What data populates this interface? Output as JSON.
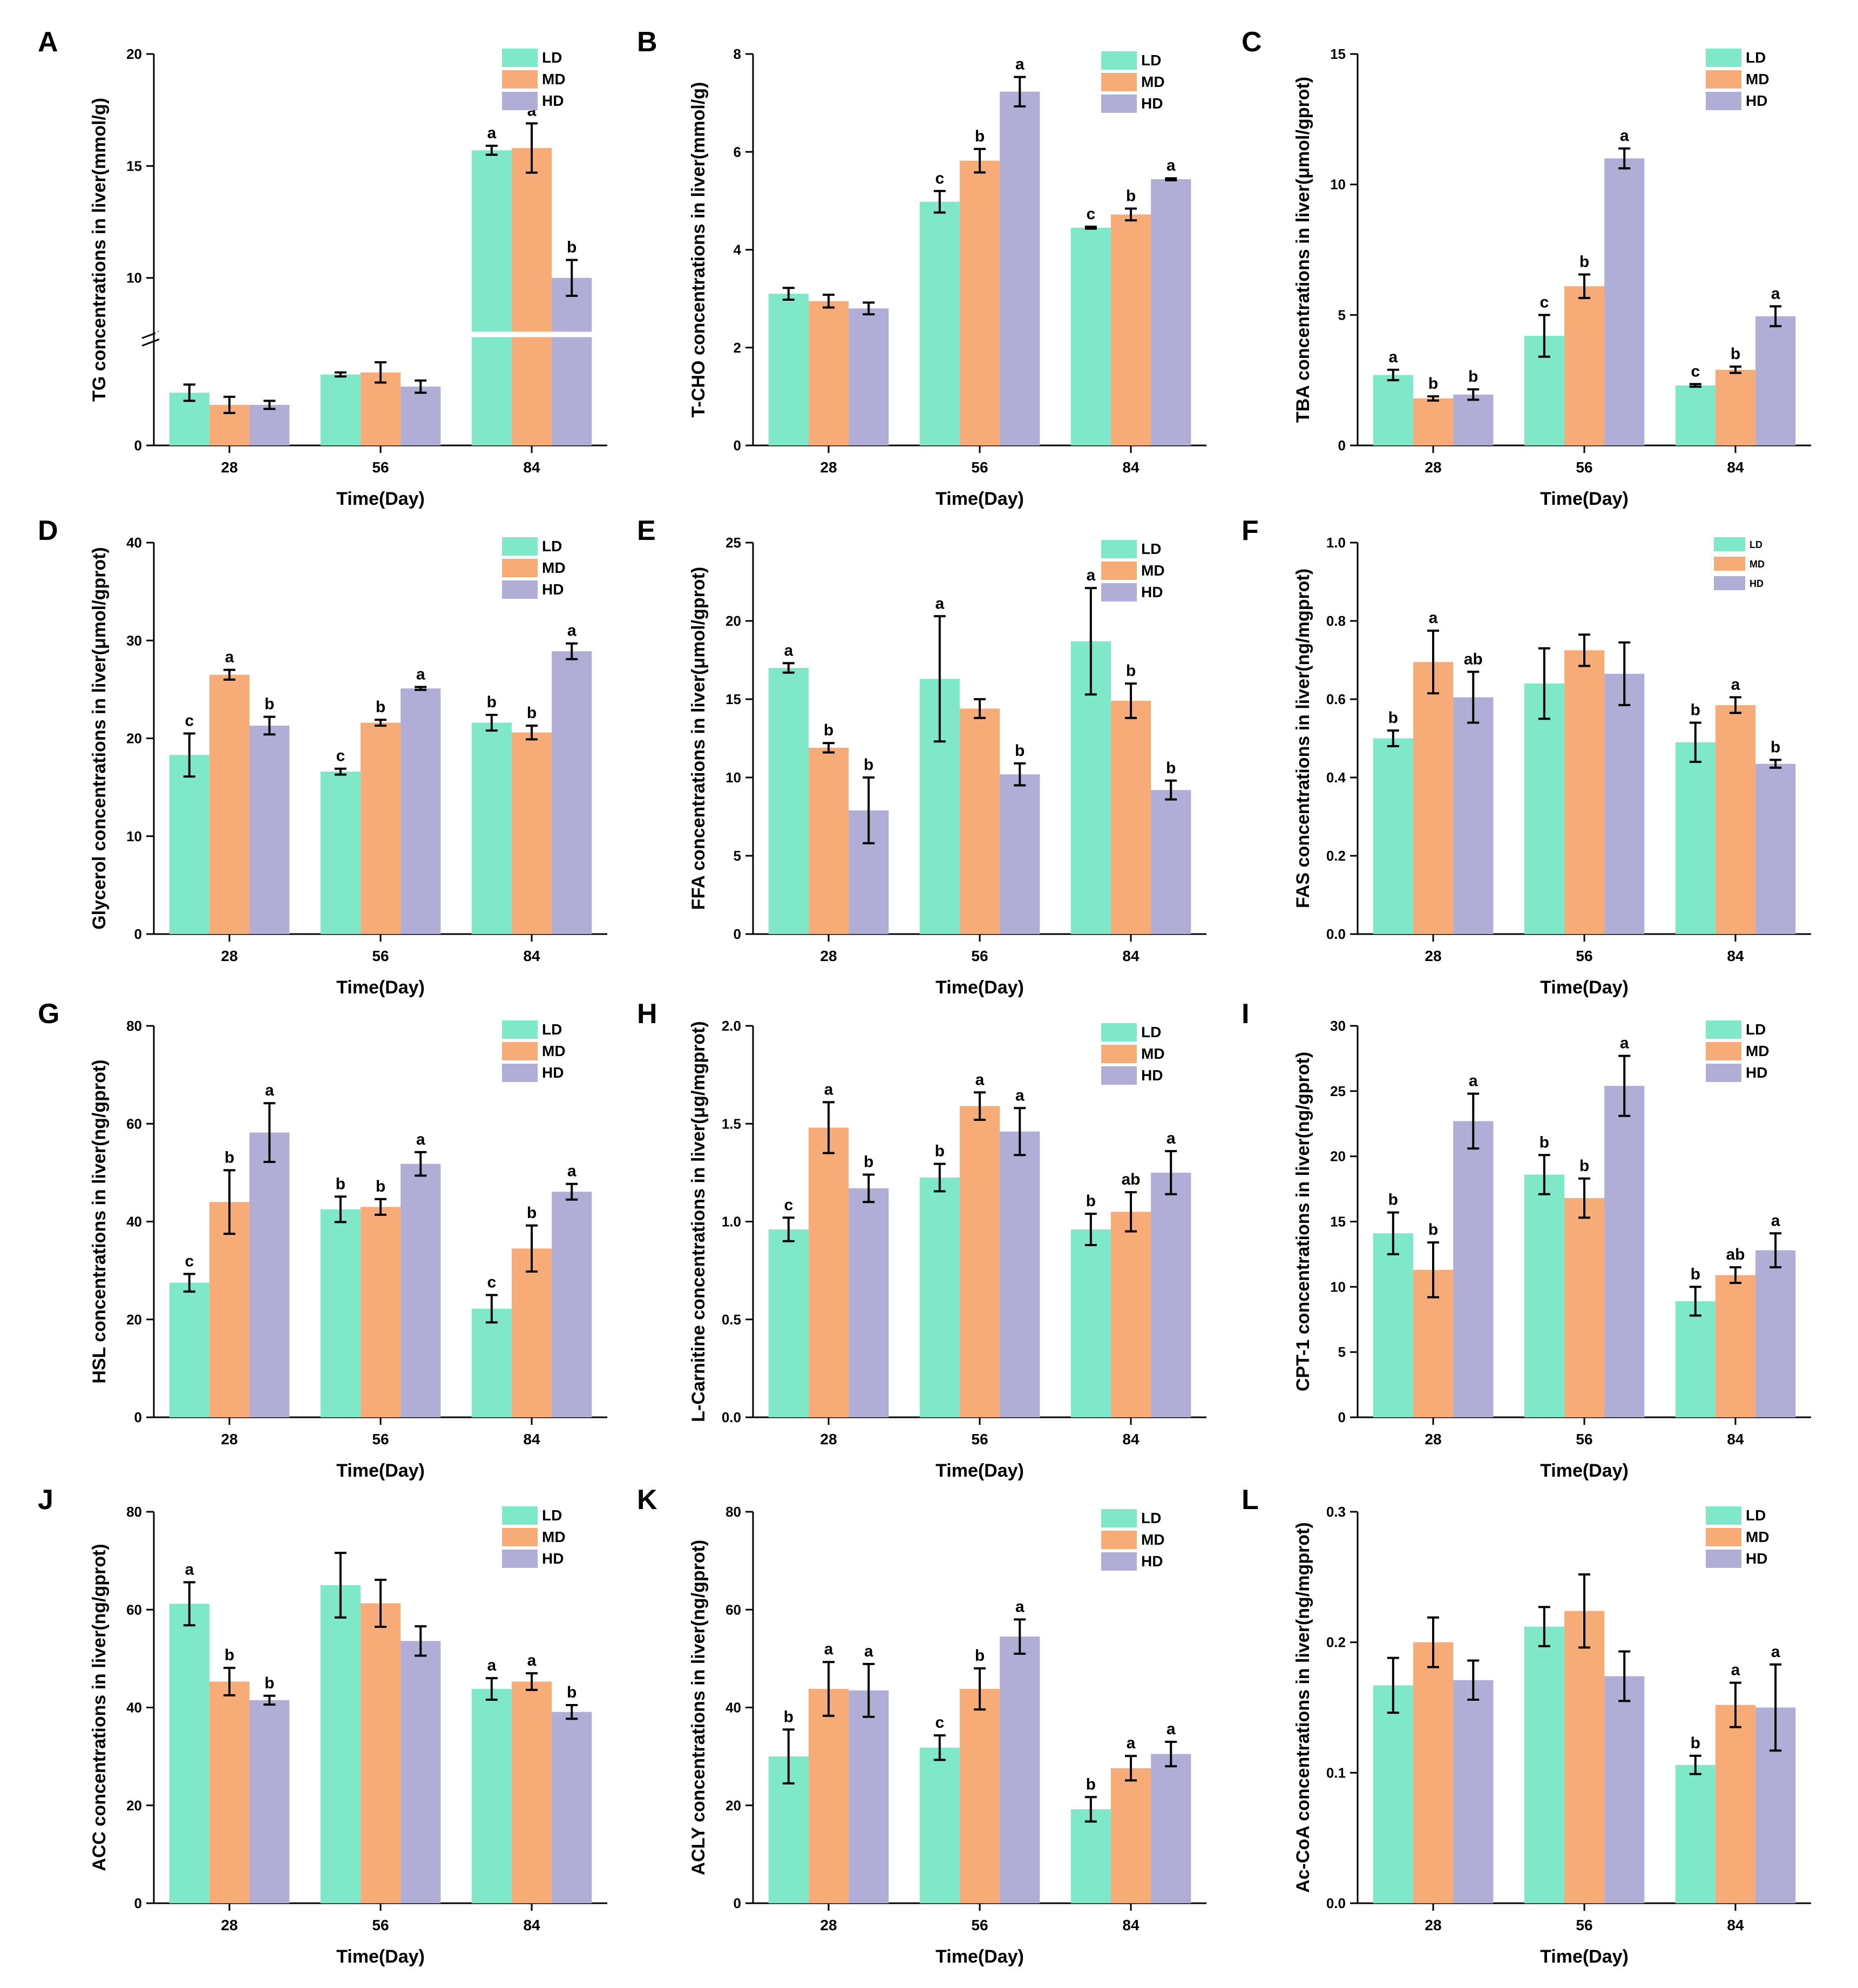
{
  "figure": {
    "series_names": [
      "LD",
      "MD",
      "HD"
    ],
    "colors": {
      "LD": "#7ee8c8",
      "MD": "#f7ab76",
      "HD": "#b0add6"
    }
  },
  "chart_data": [
    {
      "panel": "A",
      "type": "bar",
      "ylabel": "TG concentrations in liver(mmol/g)",
      "xlabel": "Time(Day)",
      "categories": [
        "28",
        "56",
        "84"
      ],
      "ylim": [
        0,
        20
      ],
      "yticks": [
        "0",
        "10",
        "15",
        "20"
      ],
      "axis_break": true,
      "series": [
        {
          "name": "LD",
          "values": [
            2.6,
            3.5,
            15.7
          ],
          "errors": [
            0.4,
            0.1,
            0.2
          ],
          "letters": [
            "",
            "",
            "a"
          ]
        },
        {
          "name": "MD",
          "values": [
            2.0,
            3.6,
            15.8
          ],
          "errors": [
            0.4,
            0.5,
            1.1
          ],
          "letters": [
            "",
            "",
            "a"
          ]
        },
        {
          "name": "HD",
          "values": [
            2.0,
            2.9,
            10.0
          ],
          "errors": [
            0.2,
            0.3,
            0.8
          ],
          "letters": [
            "",
            "",
            "b"
          ]
        }
      ]
    },
    {
      "panel": "B",
      "type": "bar",
      "ylabel": "T-CHO concentrations in liver(mmol/g)",
      "xlabel": "Time(Day)",
      "categories": [
        "28",
        "56",
        "84"
      ],
      "ylim": [
        0,
        8
      ],
      "yticks": [
        "0",
        "2",
        "4",
        "6",
        "8"
      ],
      "series": [
        {
          "name": "LD",
          "values": [
            3.1,
            4.98,
            4.45
          ],
          "errors": [
            0.12,
            0.22,
            0.02
          ],
          "letters": [
            "",
            "c",
            "c"
          ]
        },
        {
          "name": "MD",
          "values": [
            2.95,
            5.82,
            4.72
          ],
          "errors": [
            0.13,
            0.24,
            0.12
          ],
          "letters": [
            "",
            "b",
            "b"
          ]
        },
        {
          "name": "HD",
          "values": [
            2.8,
            7.23,
            5.44
          ],
          "errors": [
            0.12,
            0.3,
            0.02
          ],
          "letters": [
            "",
            "a",
            "a"
          ]
        }
      ]
    },
    {
      "panel": "C",
      "type": "bar",
      "ylabel": "TBA concentrations in liver(μmol/gprot)",
      "xlabel": "Time(Day)",
      "categories": [
        "28",
        "56",
        "84"
      ],
      "ylim": [
        0,
        15
      ],
      "yticks": [
        "0",
        "5",
        "10",
        "15"
      ],
      "series": [
        {
          "name": "LD",
          "values": [
            2.7,
            4.2,
            2.3
          ],
          "errors": [
            0.2,
            0.8,
            0.05
          ],
          "letters": [
            "a",
            "c",
            "c"
          ]
        },
        {
          "name": "MD",
          "values": [
            1.8,
            6.1,
            2.9
          ],
          "errors": [
            0.08,
            0.45,
            0.12
          ],
          "letters": [
            "b",
            "b",
            "b"
          ]
        },
        {
          "name": "HD",
          "values": [
            1.95,
            11.0,
            4.95
          ],
          "errors": [
            0.2,
            0.38,
            0.38
          ],
          "letters": [
            "b",
            "a",
            "a"
          ]
        }
      ]
    },
    {
      "panel": "D",
      "type": "bar",
      "ylabel": "Glycerol concentrations in liver(μmol/gprot)",
      "xlabel": "Time(Day)",
      "categories": [
        "28",
        "56",
        "84"
      ],
      "ylim": [
        0,
        40
      ],
      "yticks": [
        "0",
        "10",
        "20",
        "30",
        "40"
      ],
      "series": [
        {
          "name": "LD",
          "values": [
            18.3,
            16.6,
            21.6
          ],
          "errors": [
            2.2,
            0.3,
            0.8
          ],
          "letters": [
            "c",
            "c",
            "b"
          ]
        },
        {
          "name": "MD",
          "values": [
            26.5,
            21.6,
            20.6
          ],
          "errors": [
            0.5,
            0.3,
            0.7
          ],
          "letters": [
            "a",
            "b",
            "b"
          ]
        },
        {
          "name": "HD",
          "values": [
            21.3,
            25.1,
            28.9
          ],
          "errors": [
            0.9,
            0.15,
            0.8
          ],
          "letters": [
            "b",
            "a",
            "a"
          ]
        }
      ]
    },
    {
      "panel": "E",
      "type": "bar",
      "ylabel": "FFA concentrations in liver(μmol/gprot)",
      "xlabel": "Time(Day)",
      "categories": [
        "28",
        "56",
        "84"
      ],
      "ylim": [
        0,
        25
      ],
      "yticks": [
        "0",
        "5",
        "10",
        "15",
        "20",
        "25"
      ],
      "series": [
        {
          "name": "LD",
          "values": [
            17.0,
            16.3,
            18.7
          ],
          "errors": [
            0.3,
            4.0,
            3.4
          ],
          "letters": [
            "a",
            "a",
            "a"
          ]
        },
        {
          "name": "MD",
          "values": [
            11.9,
            14.4,
            14.9
          ],
          "errors": [
            0.3,
            0.6,
            1.1
          ],
          "letters": [
            "b",
            "",
            "b"
          ]
        },
        {
          "name": "HD",
          "values": [
            7.9,
            10.2,
            9.2
          ],
          "errors": [
            2.1,
            0.7,
            0.6
          ],
          "letters": [
            "b",
            "b",
            "b"
          ]
        }
      ]
    },
    {
      "panel": "F",
      "type": "bar",
      "ylabel": "FAS concentrations in liver(ng/mgprot)",
      "xlabel": "Time(Day)",
      "categories": [
        "28",
        "56",
        "84"
      ],
      "ylim": [
        0,
        1.0
      ],
      "yticks": [
        "0.0",
        "0.2",
        "0.4",
        "0.6",
        "0.8",
        "1.0"
      ],
      "small_legend": true,
      "series": [
        {
          "name": "LD",
          "values": [
            0.5,
            0.64,
            0.49
          ],
          "errors": [
            0.02,
            0.09,
            0.05
          ],
          "letters": [
            "b",
            "",
            "b"
          ]
        },
        {
          "name": "MD",
          "values": [
            0.695,
            0.725,
            0.585
          ],
          "errors": [
            0.08,
            0.04,
            0.02
          ],
          "letters": [
            "a",
            "",
            "a"
          ]
        },
        {
          "name": "HD",
          "values": [
            0.605,
            0.665,
            0.435
          ],
          "errors": [
            0.065,
            0.08,
            0.01
          ],
          "letters": [
            "ab",
            "",
            "b"
          ]
        }
      ]
    },
    {
      "panel": "G",
      "type": "bar",
      "ylabel": "HSL concentrations in liver(ng/gprot)",
      "xlabel": "Time(Day)",
      "categories": [
        "28",
        "56",
        "84"
      ],
      "ylim": [
        0,
        80
      ],
      "yticks": [
        "0",
        "20",
        "40",
        "60",
        "80"
      ],
      "series": [
        {
          "name": "LD",
          "values": [
            27.5,
            42.5,
            22.2
          ],
          "errors": [
            1.8,
            2.6,
            2.8
          ],
          "letters": [
            "c",
            "b",
            "c"
          ]
        },
        {
          "name": "MD",
          "values": [
            44.0,
            43.0,
            34.5
          ],
          "errors": [
            6.5,
            1.6,
            4.7
          ],
          "letters": [
            "b",
            "b",
            "b"
          ]
        },
        {
          "name": "HD",
          "values": [
            58.2,
            51.8,
            46.1
          ],
          "errors": [
            6.0,
            2.4,
            1.6
          ],
          "letters": [
            "a",
            "a",
            "a"
          ]
        }
      ]
    },
    {
      "panel": "H",
      "type": "bar",
      "ylabel": "L-Carnitine concentrations in liver(μg/mgprot)",
      "xlabel": "Time(Day)",
      "categories": [
        "28",
        "56",
        "84"
      ],
      "ylim": [
        0,
        2.0
      ],
      "yticks": [
        "0.0",
        "0.5",
        "1.0",
        "1.5",
        "2.0"
      ],
      "series": [
        {
          "name": "LD",
          "values": [
            0.96,
            1.225,
            0.96
          ],
          "errors": [
            0.06,
            0.07,
            0.08
          ],
          "letters": [
            "c",
            "b",
            "b"
          ]
        },
        {
          "name": "MD",
          "values": [
            1.48,
            1.59,
            1.05
          ],
          "errors": [
            0.13,
            0.07,
            0.1
          ],
          "letters": [
            "a",
            "a",
            "ab"
          ]
        },
        {
          "name": "HD",
          "values": [
            1.17,
            1.46,
            1.25
          ],
          "errors": [
            0.07,
            0.12,
            0.11
          ],
          "letters": [
            "b",
            "a",
            "a"
          ]
        }
      ]
    },
    {
      "panel": "I",
      "type": "bar",
      "ylabel": "CPT-1 concentrations in liver(ng/gprot)",
      "xlabel": "Time(Day)",
      "categories": [
        "28",
        "56",
        "84"
      ],
      "ylim": [
        0,
        30
      ],
      "yticks": [
        "0",
        "5",
        "10",
        "15",
        "20",
        "25",
        "30"
      ],
      "series": [
        {
          "name": "LD",
          "values": [
            14.1,
            18.6,
            8.9
          ],
          "errors": [
            1.6,
            1.5,
            1.1
          ],
          "letters": [
            "b",
            "b",
            "b"
          ]
        },
        {
          "name": "MD",
          "values": [
            11.3,
            16.8,
            10.9
          ],
          "errors": [
            2.1,
            1.5,
            0.6
          ],
          "letters": [
            "b",
            "b",
            "ab"
          ]
        },
        {
          "name": "HD",
          "values": [
            22.7,
            25.4,
            12.8
          ],
          "errors": [
            2.1,
            2.3,
            1.3
          ],
          "letters": [
            "a",
            "a",
            "a"
          ]
        }
      ]
    },
    {
      "panel": "J",
      "type": "bar",
      "ylabel": "ACC concentrations in liver(ng/gprot)",
      "xlabel": "Time(Day)",
      "categories": [
        "28",
        "56",
        "84"
      ],
      "ylim": [
        0,
        80
      ],
      "yticks": [
        "0",
        "20",
        "40",
        "60",
        "80"
      ],
      "series": [
        {
          "name": "LD",
          "values": [
            61.2,
            65.0,
            43.8
          ],
          "errors": [
            4.4,
            6.6,
            2.2
          ],
          "letters": [
            "a",
            "",
            "a"
          ]
        },
        {
          "name": "MD",
          "values": [
            45.3,
            61.3,
            45.3
          ],
          "errors": [
            2.8,
            4.8,
            1.7
          ],
          "letters": [
            "b",
            "",
            "a"
          ]
        },
        {
          "name": "HD",
          "values": [
            41.5,
            53.6,
            39.1
          ],
          "errors": [
            0.9,
            3.0,
            1.4
          ],
          "letters": [
            "b",
            "",
            "b"
          ]
        }
      ]
    },
    {
      "panel": "K",
      "type": "bar",
      "ylabel": "ACLY concentrations in liver(ng/gprot)",
      "xlabel": "Time(Day)",
      "categories": [
        "28",
        "56",
        "84"
      ],
      "ylim": [
        0,
        80
      ],
      "yticks": [
        "0",
        "20",
        "40",
        "60",
        "80"
      ],
      "series": [
        {
          "name": "LD",
          "values": [
            30.0,
            31.8,
            19.2
          ],
          "errors": [
            5.5,
            2.5,
            2.5
          ],
          "letters": [
            "b",
            "c",
            "b"
          ]
        },
        {
          "name": "MD",
          "values": [
            43.8,
            43.8,
            27.6
          ],
          "errors": [
            5.5,
            4.2,
            2.5
          ],
          "letters": [
            "a",
            "b",
            "a"
          ]
        },
        {
          "name": "HD",
          "values": [
            43.5,
            54.5,
            30.5
          ],
          "errors": [
            5.4,
            3.5,
            2.5
          ],
          "letters": [
            "a",
            "a",
            "a"
          ]
        }
      ]
    },
    {
      "panel": "L",
      "type": "bar",
      "ylabel": "Ac-CoA concentrations in liver(ng/mgprot)",
      "xlabel": "Time(Day)",
      "categories": [
        "28",
        "56",
        "84"
      ],
      "ylim": [
        0,
        0.3
      ],
      "yticks": [
        "0.0",
        "0.1",
        "0.2",
        "0.3"
      ],
      "series": [
        {
          "name": "LD",
          "values": [
            0.167,
            0.212,
            0.106
          ],
          "errors": [
            0.021,
            0.015,
            0.007
          ],
          "letters": [
            "",
            "",
            "b"
          ]
        },
        {
          "name": "MD",
          "values": [
            0.2,
            0.224,
            0.152
          ],
          "errors": [
            0.019,
            0.028,
            0.017
          ],
          "letters": [
            "",
            "",
            "a"
          ]
        },
        {
          "name": "HD",
          "values": [
            0.171,
            0.174,
            0.15
          ],
          "errors": [
            0.015,
            0.019,
            0.033
          ],
          "letters": [
            "",
            "",
            "a"
          ]
        }
      ]
    }
  ]
}
